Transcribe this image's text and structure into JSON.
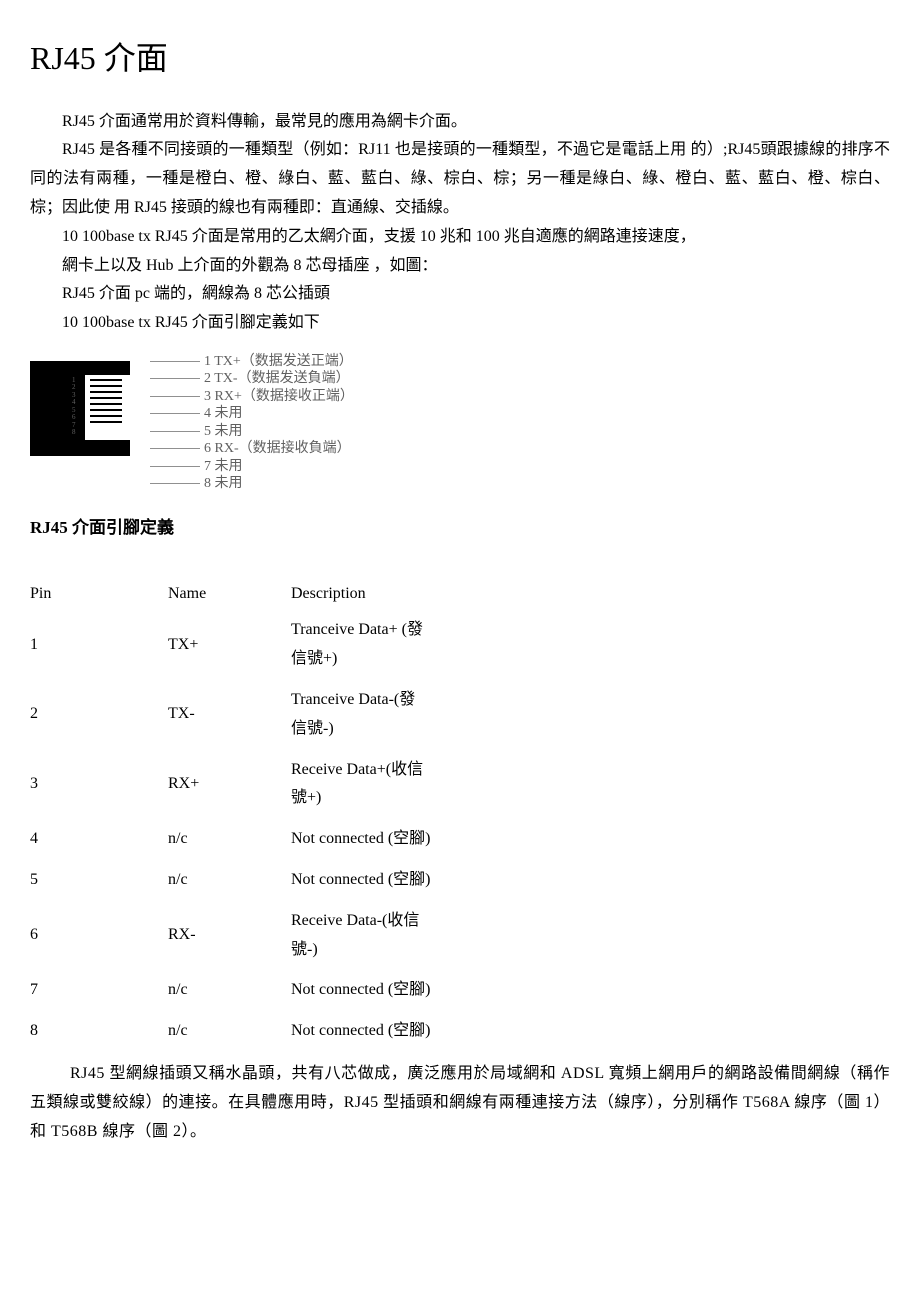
{
  "title": "RJ45 介面",
  "paragraphs": {
    "p1": "RJ45 介面通常用於資料傳輸，最常見的應用為網卡介面。",
    "p2": "RJ45 是各種不同接頭的一種類型（例如：RJ11 也是接頭的一種類型，不過它是電話上用 的）;RJ45頭跟據線的排序不同的法有兩種，一種是橙白、橙、綠白、藍、藍白、綠、棕白、棕；另一種是綠白、綠、橙白、藍、藍白、橙、棕白、棕；因此使 用 RJ45 接頭的線也有兩種即：直通線、交插線。",
    "p3": "10 100base tx RJ45 介面是常用的乙太網介面，支援 10 兆和 100 兆自適應的網路連接速度，",
    "p4": "網卡上以及 Hub 上介面的外觀為 8 芯母插座 ，如圖：",
    "p5": "RJ45 介面 pc 端的，網線為 8 芯公插頭",
    "p6": "10 100base tx RJ45 介面引腳定義如下"
  },
  "pin_diagram": {
    "pins": [
      {
        "num": "1",
        "label": "TX+（数据发送正端）"
      },
      {
        "num": "2",
        "label": "TX-（数据发送負端）"
      },
      {
        "num": "3",
        "label": "RX+（数据接收正端）"
      },
      {
        "num": "4",
        "label": "未用"
      },
      {
        "num": "5",
        "label": "未用"
      },
      {
        "num": "6",
        "label": "RX-（数据接收負端）"
      },
      {
        "num": "7",
        "label": "未用"
      },
      {
        "num": "8",
        "label": "未用"
      }
    ],
    "text_color": "#606060",
    "line_color": "#909090"
  },
  "section_heading": "RJ45 介面引腳定義",
  "table": {
    "headers": {
      "pin": "Pin",
      "name": "Name",
      "desc": "Description"
    },
    "rows": [
      {
        "pin": "1",
        "name": "TX+",
        "desc": "Tranceive Data+ (發信號+)"
      },
      {
        "pin": "2",
        "name": "TX-",
        "desc": "Tranceive Data-(發信號-)"
      },
      {
        "pin": "3",
        "name": "RX+",
        "desc": "Receive Data+(收信號+)"
      },
      {
        "pin": "4",
        "name": "n/c",
        "desc": "Not connected (空腳)"
      },
      {
        "pin": "5",
        "name": "n/c",
        "desc": "Not connected (空腳)"
      },
      {
        "pin": "6",
        "name": "RX-",
        "desc": "Receive Data-(收信號-)"
      },
      {
        "pin": "7",
        "name": "n/c",
        "desc": "Not connected (空腳)"
      },
      {
        "pin": "8",
        "name": "n/c",
        "desc": "Not connected (空腳)"
      }
    ]
  },
  "footer": "RJ45 型網線插頭又稱水晶頭，共有八芯做成，廣泛應用於局域網和 ADSL 寬頻上網用戶的網路設備間網線（稱作五類線或雙絞線）的連接。在具體應用時，RJ45 型插頭和網線有兩種連接方法（線序），分別稱作 T568A 線序（圖 1）和 T568B 線序（圖 2）。"
}
